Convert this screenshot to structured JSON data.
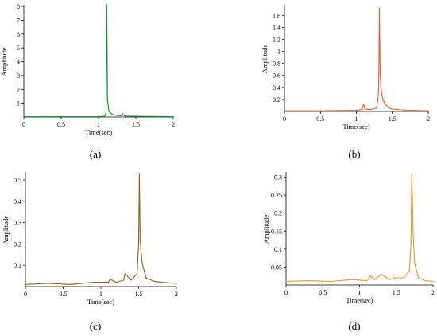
{
  "chart_data": [
    {
      "type": "line",
      "caption": "(a)",
      "xlabel": "Time(sec)",
      "ylabel": "Amplitude",
      "xlim": [
        0,
        2
      ],
      "ylim": [
        0,
        8
      ],
      "xticks": [
        0,
        0.5,
        1,
        1.5,
        2
      ],
      "xtick_labels": [
        "0",
        "0.5",
        "1",
        "1.5",
        "2"
      ],
      "yticks": [
        1,
        2,
        3,
        4,
        5,
        6,
        7,
        8
      ],
      "ytick_labels": [
        "1",
        "2",
        "3",
        "4",
        "5",
        "6",
        "7",
        "8"
      ],
      "color": "#1a8a2e",
      "series": [
        {
          "x": [
            0,
            0.5,
            1.0,
            1.08,
            1.1,
            1.11,
            1.115,
            1.12,
            1.13,
            1.14,
            1.16,
            1.18,
            1.2,
            1.25,
            1.3,
            1.32,
            1.35,
            1.4,
            1.5,
            1.7,
            2.0
          ],
          "values": [
            0.02,
            0.03,
            0.03,
            0.05,
            0.3,
            8.1,
            5.2,
            1.3,
            0.8,
            0.4,
            0.3,
            0.2,
            0.15,
            0.12,
            0.1,
            0.25,
            0.08,
            0.06,
            0.05,
            0.04,
            0.03
          ]
        }
      ]
    },
    {
      "type": "line",
      "caption": "(b)",
      "xlabel": "Time(sec)",
      "ylabel": "Amplitude",
      "xlim": [
        0,
        2
      ],
      "ylim": [
        0,
        1.75
      ],
      "xticks": [
        0,
        0.5,
        1,
        1.5,
        2
      ],
      "xtick_labels": [
        "0",
        "0.5",
        "1",
        "1.5",
        "2"
      ],
      "yticks": [
        0.2,
        0.4,
        0.6,
        0.8,
        1.0,
        1.2,
        1.4,
        1.6
      ],
      "ytick_labels": [
        "0.2",
        "0.4",
        "0.6",
        "0.8",
        "1",
        "1.2",
        "1.4",
        "1.6"
      ],
      "color": "#f05a28",
      "series": [
        {
          "x": [
            0,
            0.5,
            1.0,
            1.08,
            1.1,
            1.12,
            1.2,
            1.28,
            1.3,
            1.31,
            1.32,
            1.33,
            1.34,
            1.35,
            1.37,
            1.4,
            1.45,
            1.5,
            1.7,
            2.0
          ],
          "values": [
            0.01,
            0.01,
            0.02,
            0.03,
            0.12,
            0.04,
            0.03,
            0.06,
            0.2,
            0.4,
            1.72,
            0.65,
            0.45,
            0.3,
            0.2,
            0.12,
            0.06,
            0.04,
            0.02,
            0.01
          ]
        }
      ]
    },
    {
      "type": "line",
      "caption": "(c)",
      "xlabel": "Time(sec)",
      "ylabel": "Amplitude",
      "xlim": [
        0,
        2
      ],
      "ylim": [
        0,
        0.53
      ],
      "xticks": [
        0,
        0.5,
        1,
        1.5,
        2
      ],
      "xtick_labels": [
        "0",
        "0.5",
        "1",
        "1.5",
        "2"
      ],
      "yticks": [
        0.1,
        0.2,
        0.3,
        0.4,
        0.5
      ],
      "ytick_labels": [
        "0.1",
        "0.2",
        "0.3",
        "0.4",
        "0.5"
      ],
      "color": "#7a6a1e",
      "series": [
        {
          "x": [
            0,
            0.3,
            0.6,
            0.9,
            1.1,
            1.12,
            1.2,
            1.3,
            1.32,
            1.4,
            1.48,
            1.5,
            1.51,
            1.52,
            1.54,
            1.56,
            1.6,
            1.7,
            1.8,
            2.0
          ],
          "values": [
            0.01,
            0.015,
            0.01,
            0.02,
            0.02,
            0.035,
            0.02,
            0.03,
            0.06,
            0.03,
            0.06,
            0.2,
            0.53,
            0.22,
            0.13,
            0.09,
            0.04,
            0.025,
            0.02,
            0.015
          ]
        }
      ]
    },
    {
      "type": "line",
      "caption": "(d)",
      "xlabel": "Time(sec)",
      "ylabel": "Amplitude",
      "xlim": [
        0,
        2
      ],
      "ylim": [
        0,
        0.31
      ],
      "xticks": [
        0,
        0.5,
        1,
        1.5,
        2
      ],
      "xtick_labels": [
        "0",
        "0.5",
        "1",
        "1.5",
        "2"
      ],
      "yticks": [
        0.05,
        0.1,
        0.15,
        0.2,
        0.25,
        0.3
      ],
      "ytick_labels": [
        "0.05",
        "0.1",
        "0.15",
        "0.2",
        "0.25",
        "0.3"
      ],
      "color": "#e8962a",
      "series": [
        {
          "x": [
            0,
            0.3,
            0.6,
            0.9,
            1.1,
            1.15,
            1.2,
            1.3,
            1.4,
            1.5,
            1.6,
            1.68,
            1.7,
            1.71,
            1.72,
            1.73,
            1.75,
            1.8,
            1.9,
            2.0
          ],
          "values": [
            0.01,
            0.012,
            0.01,
            0.015,
            0.012,
            0.025,
            0.015,
            0.03,
            0.015,
            0.02,
            0.02,
            0.04,
            0.12,
            0.31,
            0.24,
            0.14,
            0.06,
            0.02,
            0.012,
            0.01
          ]
        }
      ]
    }
  ]
}
